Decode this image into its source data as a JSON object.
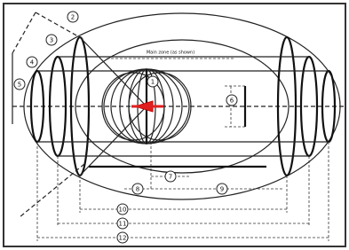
{
  "diagram": {
    "caption": "Main zone (as shown)",
    "labels": [
      "1",
      "2",
      "3",
      "4",
      "5",
      "6",
      "7",
      "8",
      "9",
      "10",
      "11",
      "12"
    ]
  }
}
